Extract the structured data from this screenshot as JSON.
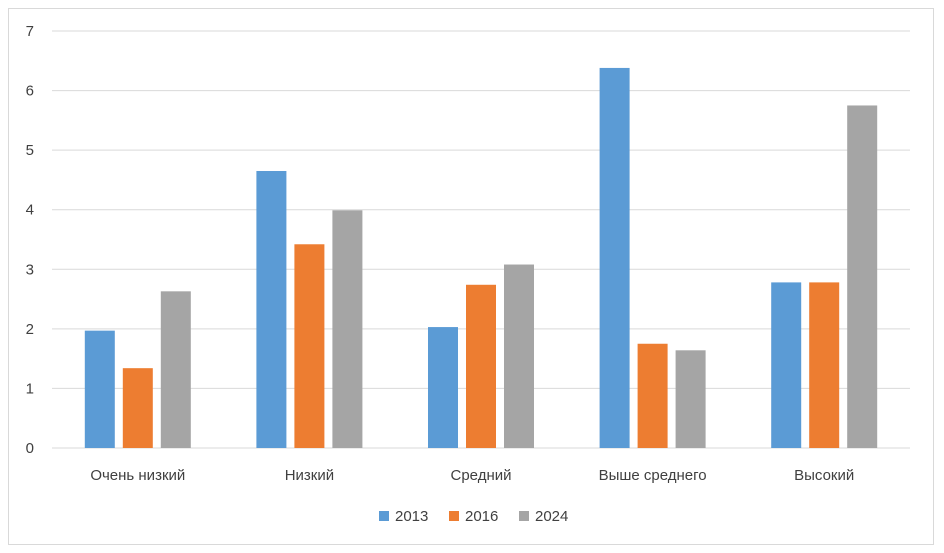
{
  "chart_data": {
    "type": "bar",
    "categories": [
      "Очень низкий",
      "Низкий",
      "Средний",
      "Выше среднего",
      "Высокий"
    ],
    "series": [
      {
        "name": "2013",
        "color": "#5b9bd5",
        "values": [
          1.97,
          4.65,
          2.03,
          6.38,
          2.78
        ]
      },
      {
        "name": "2016",
        "color": "#ed7d31",
        "values": [
          1.34,
          3.42,
          2.74,
          1.75,
          2.78
        ]
      },
      {
        "name": "2024",
        "color": "#a5a5a5",
        "values": [
          2.63,
          3.99,
          3.08,
          1.64,
          5.75
        ]
      }
    ],
    "ylim": [
      0,
      7
    ],
    "yticks": [
      "0",
      "1",
      "2",
      "3",
      "4",
      "5",
      "6",
      "7"
    ],
    "grid": true,
    "legend_position": "bottom"
  }
}
